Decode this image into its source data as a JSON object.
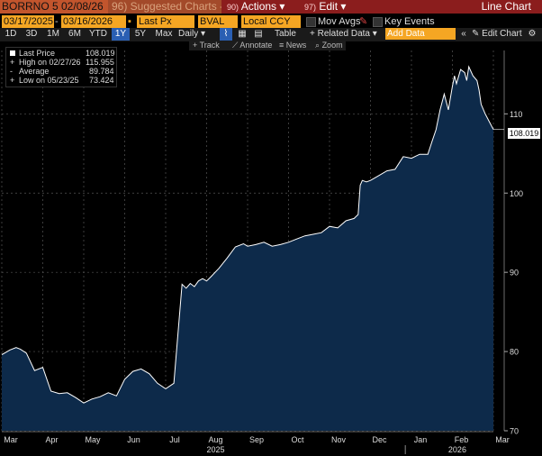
{
  "toolbar1": {
    "ticker": "BORRNO 5 02/08/26",
    "suggested": "96) Suggested Charts -",
    "actions_num": "90)",
    "actions_label": "Actions",
    "edit_num": "97)",
    "edit_label": "Edit",
    "title": "Line Chart"
  },
  "toolbar2": {
    "start_date": "03/17/2025",
    "end_date": "03/16/2026",
    "field": "Last Px",
    "source": "BVAL",
    "currency": "Local CCY",
    "mov_avgs": "Mov Avgs",
    "key_events": "Key Events"
  },
  "toolbar3": {
    "periods": [
      "1D",
      "3D",
      "1M",
      "6M",
      "YTD",
      "1Y",
      "5Y",
      "Max"
    ],
    "selected_period": "1Y",
    "frequency": "Daily",
    "table": "Table",
    "related": "Related Data",
    "add_data_placeholder": "Add Data",
    "edit_chart": "Edit Chart"
  },
  "toolbar4": {
    "track": "Track",
    "annotate": "Annotate",
    "news": "News",
    "zoom": "Zoom"
  },
  "legend": {
    "last_label": "Last Price",
    "last_value": "108.019",
    "high_label": "High on 02/27/26",
    "high_value": "115.955",
    "avg_label": "Average",
    "avg_value": "89.784",
    "low_label": "Low on 05/23/25",
    "low_value": "73.424"
  },
  "price_tag": "108.019",
  "colors": {
    "accent": "#f5a623",
    "header_red": "#8b1d1d",
    "fill": "#0d2a4a",
    "line": "#ffffff"
  },
  "chart_data": {
    "type": "area",
    "ylim": [
      70,
      118
    ],
    "yticks": [
      70,
      80,
      90,
      100,
      110
    ],
    "xticks": [
      "Mar",
      "Apr",
      "May",
      "Jun",
      "Jul",
      "Aug",
      "Sep",
      "Oct",
      "Nov",
      "Dec",
      "Jan",
      "Feb",
      "Mar"
    ],
    "year_labels": [
      "2025",
      "2026"
    ],
    "series": [
      {
        "x": [
          0,
          0.2,
          0.35,
          0.45,
          0.6,
          0.8,
          1.0,
          1.2,
          1.4,
          1.6,
          1.8,
          2.0,
          2.2,
          2.4,
          2.6,
          2.8,
          3.0,
          3.2,
          3.4,
          3.6,
          3.8,
          4.0,
          4.2,
          4.4,
          4.5,
          4.6,
          4.7,
          4.8,
          4.9,
          5.0,
          5.1,
          5.3,
          5.5,
          5.7,
          5.9,
          6.0,
          6.2,
          6.4,
          6.6,
          6.8,
          7.0,
          7.2,
          7.4,
          7.6,
          7.8,
          8.0,
          8.2,
          8.4,
          8.6,
          8.7,
          8.75,
          8.8,
          8.9,
          9.0,
          9.2,
          9.4,
          9.6,
          9.8,
          10.0,
          10.2,
          10.4,
          10.5,
          10.6,
          10.7,
          10.8,
          10.9,
          11.0,
          11.05,
          11.1,
          11.2,
          11.3,
          11.35,
          11.4,
          11.5,
          11.6,
          11.65,
          11.7,
          11.8,
          11.9,
          12.0
        ],
        "y": [
          79.6,
          80.2,
          80.5,
          80.3,
          79.8,
          77.6,
          78.0,
          75.0,
          74.7,
          74.8,
          74.2,
          73.5,
          74.0,
          74.3,
          74.8,
          74.4,
          76.5,
          77.5,
          77.8,
          77.2,
          76.0,
          75.3,
          76.0,
          88.5,
          88.0,
          88.6,
          88.2,
          88.9,
          89.2,
          88.9,
          89.4,
          90.5,
          91.8,
          93.2,
          93.6,
          93.3,
          93.5,
          93.8,
          93.3,
          93.5,
          93.8,
          94.2,
          94.6,
          94.8,
          95.0,
          95.8,
          95.6,
          96.5,
          96.8,
          97.3,
          101.0,
          101.6,
          101.4,
          101.6,
          102.2,
          102.8,
          103.0,
          104.6,
          104.4,
          104.9,
          104.9,
          106.5,
          108.0,
          110.5,
          112.5,
          110.5,
          113.5,
          114.8,
          113.8,
          115.6,
          115.2,
          114.2,
          115.955,
          114.8,
          114.2,
          113.0,
          111.2,
          110.0,
          109.0,
          108.019
        ]
      }
    ]
  }
}
